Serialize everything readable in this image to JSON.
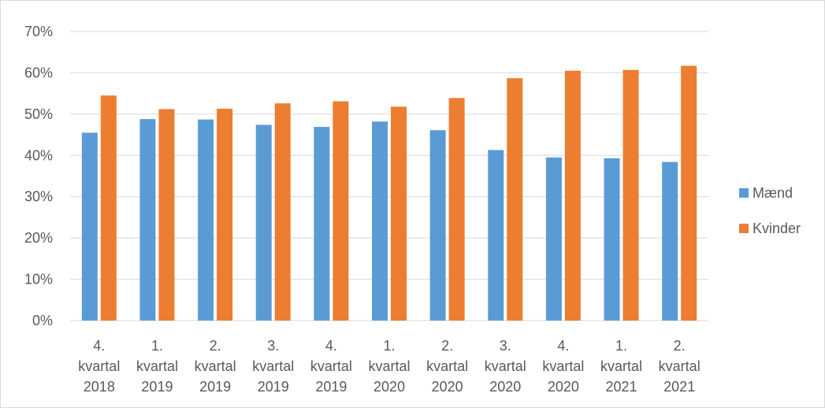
{
  "chart_data": {
    "type": "bar",
    "categories": [
      [
        "4.",
        "kvartal",
        "2018"
      ],
      [
        "1.",
        "kvartal",
        "2019"
      ],
      [
        "2.",
        "kvartal",
        "2019"
      ],
      [
        "3.",
        "kvartal",
        "2019"
      ],
      [
        "4.",
        "kvartal",
        "2019"
      ],
      [
        "1.",
        "kvartal",
        "2020"
      ],
      [
        "2.",
        "kvartal",
        "2020"
      ],
      [
        "3.",
        "kvartal",
        "2020"
      ],
      [
        "4.",
        "kvartal",
        "2020"
      ],
      [
        "1.",
        "kvartal",
        "2021"
      ],
      [
        "2.",
        "kvartal",
        "2021"
      ]
    ],
    "series": [
      {
        "name": "Mænd",
        "color": "#5b9bd5",
        "values": [
          0.455,
          0.488,
          0.487,
          0.474,
          0.469,
          0.482,
          0.461,
          0.413,
          0.395,
          0.393,
          0.384
        ]
      },
      {
        "name": "Kvinder",
        "color": "#ed7d31",
        "values": [
          0.545,
          0.512,
          0.513,
          0.526,
          0.531,
          0.518,
          0.539,
          0.587,
          0.605,
          0.607,
          0.617
        ]
      }
    ],
    "ylim": [
      0,
      0.7
    ],
    "yticks": [
      "0%",
      "10%",
      "20%",
      "30%",
      "40%",
      "50%",
      "60%",
      "70%"
    ],
    "grid": true,
    "legend_position": "right",
    "gridline_color": "#d9d9d9"
  }
}
